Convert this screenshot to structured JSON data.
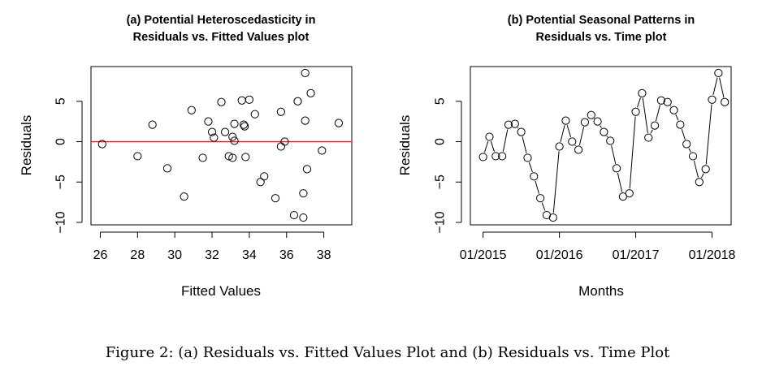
{
  "caption": "Figure 2: (a) Residuals vs. Fitted Values Plot and (b) Residuals vs. Time Plot",
  "colors": {
    "reference_line": "#e02020",
    "points": "#000000"
  },
  "chart_data": [
    {
      "type": "scatter",
      "title_line1": "(a) Potential Heteroscedasticity in",
      "title_line2": "Residuals vs. Fitted Values plot",
      "xlabel": "Fitted Values",
      "ylabel": "Residuals",
      "xlim": [
        25.5,
        39.5
      ],
      "ylim": [
        -10.3,
        9.3
      ],
      "xticks": [
        26,
        28,
        30,
        32,
        34,
        36,
        38
      ],
      "yticks": [
        -10,
        -5,
        0,
        5
      ],
      "reference_line_y": 0,
      "x": [
        26.1,
        28.0,
        28.8,
        29.6,
        30.5,
        30.9,
        31.5,
        31.8,
        32.0,
        32.1,
        32.5,
        32.7,
        32.9,
        33.1,
        33.1,
        33.2,
        33.2,
        33.6,
        33.7,
        33.75,
        33.8,
        34.0,
        34.3,
        34.6,
        34.8,
        35.4,
        35.7,
        35.7,
        35.9,
        36.4,
        36.6,
        36.9,
        36.9,
        37.0,
        37.0,
        37.1,
        37.3,
        37.9,
        38.8
      ],
      "y": [
        -0.3,
        -1.8,
        2.1,
        -3.3,
        -6.8,
        3.9,
        -2.0,
        2.5,
        1.2,
        0.5,
        4.9,
        1.2,
        -1.8,
        -2.0,
        0.6,
        0.1,
        2.2,
        5.1,
        2.1,
        1.9,
        -1.9,
        5.2,
        3.4,
        -5.0,
        -4.3,
        -7.0,
        3.7,
        -0.6,
        0.0,
        -9.1,
        5.0,
        -6.4,
        -9.4,
        8.5,
        2.6,
        -3.4,
        6.0,
        -1.1,
        2.3
      ]
    },
    {
      "type": "line",
      "title_line1": "(b) Potential Seasonal Patterns in",
      "title_line2": "Residuals vs. Time plot",
      "xlabel": "Months",
      "ylabel": "Residuals",
      "xlim": [
        "2014-11",
        "2018-04"
      ],
      "ylim": [
        -10.3,
        9.3
      ],
      "xticks": [
        "2015-01",
        "2016-01",
        "2017-01",
        "2018-01"
      ],
      "xtick_labels": [
        "01/2015",
        "01/2016",
        "01/2017",
        "01/2018"
      ],
      "yticks": [
        -10,
        -5,
        0,
        5
      ],
      "line_style": "points-and-lines",
      "x": [
        "2015-01",
        "2015-02",
        "2015-03",
        "2015-04",
        "2015-05",
        "2015-06",
        "2015-07",
        "2015-08",
        "2015-09",
        "2015-10",
        "2015-11",
        "2015-12",
        "2016-01",
        "2016-02",
        "2016-03",
        "2016-04",
        "2016-05",
        "2016-06",
        "2016-07",
        "2016-08",
        "2016-09",
        "2016-10",
        "2016-11",
        "2016-12",
        "2017-01",
        "2017-02",
        "2017-03",
        "2017-04",
        "2017-05",
        "2017-06",
        "2017-07",
        "2017-08",
        "2017-09",
        "2017-10",
        "2017-11",
        "2017-12",
        "2018-01",
        "2018-02",
        "2018-03"
      ],
      "y": [
        -1.9,
        0.6,
        -1.8,
        -1.8,
        2.1,
        2.2,
        1.2,
        -2.0,
        -4.3,
        -7.0,
        -9.1,
        -9.4,
        -0.6,
        2.6,
        0.0,
        -1.0,
        2.4,
        3.3,
        2.5,
        1.2,
        0.1,
        -3.3,
        -6.8,
        -6.4,
        3.7,
        6.0,
        0.5,
        2.0,
        5.1,
        4.9,
        3.9,
        2.1,
        -0.3,
        -1.8,
        -5.0,
        -3.4,
        5.2,
        8.5,
        4.9
      ]
    }
  ]
}
